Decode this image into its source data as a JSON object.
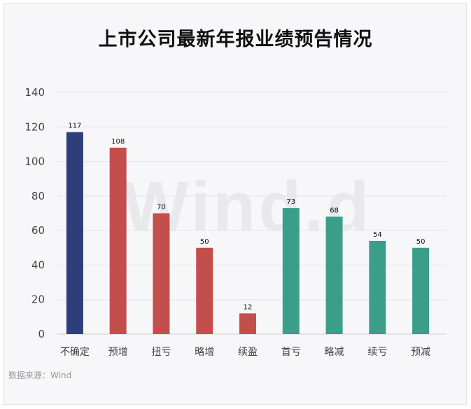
{
  "title": "上市公司最新年报业绩预告情况",
  "source": "数据来源：Wind",
  "watermark": "Wind.d",
  "colors": {
    "uncertain": "#2e3e7a",
    "positive": "#c44e4b",
    "negative": "#3a9e8a",
    "grid": "#e6e6ea",
    "axis": "#cfcfd4",
    "label": "#444444"
  },
  "chart_data": {
    "type": "bar",
    "categories": [
      "不确定",
      "预增",
      "扭亏",
      "略增",
      "续盈",
      "首亏",
      "略减",
      "续亏",
      "预减"
    ],
    "values": [
      117,
      108,
      70,
      50,
      12,
      73,
      68,
      54,
      50
    ],
    "bar_colors": [
      "#2e3e7a",
      "#c44e4b",
      "#c44e4b",
      "#c44e4b",
      "#c44e4b",
      "#3a9e8a",
      "#3a9e8a",
      "#3a9e8a",
      "#3a9e8a"
    ],
    "ylim": [
      0,
      140
    ],
    "yticks": [
      0,
      20,
      40,
      60,
      80,
      100,
      120,
      140
    ],
    "grid": true,
    "legend": false,
    "xlabel": "",
    "ylabel": ""
  }
}
